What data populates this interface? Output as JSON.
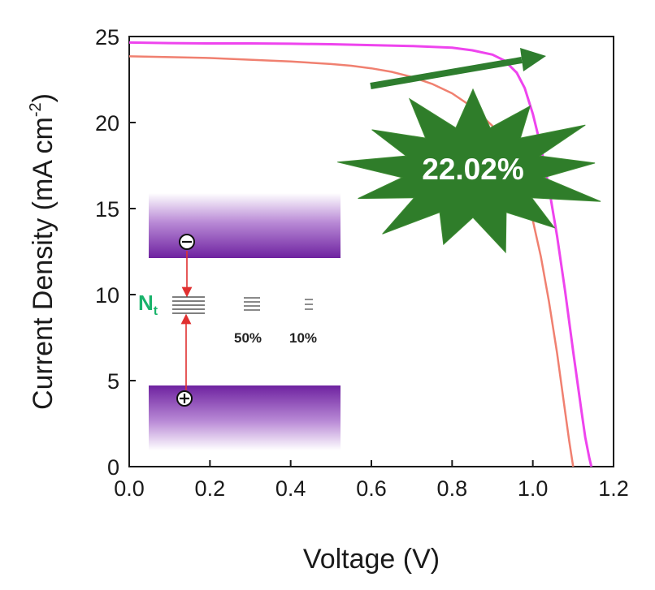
{
  "chart_data": {
    "type": "line",
    "title": "",
    "xlabel": "Voltage (V)",
    "ylabel_main": "Current Density (mA cm",
    "ylabel_sup": "-2",
    "ylabel_close": ")",
    "xlim": [
      0.0,
      1.2
    ],
    "ylim": [
      0,
      25
    ],
    "xticks": [
      "0.0",
      "0.2",
      "0.4",
      "0.6",
      "0.8",
      "1.0",
      "1.2"
    ],
    "yticks": [
      "0",
      "5",
      "10",
      "15",
      "20",
      "25"
    ],
    "grid": false,
    "series": [
      {
        "name": "control",
        "color": "#f08070",
        "x": [
          0.0,
          0.1,
          0.2,
          0.3,
          0.4,
          0.5,
          0.55,
          0.6,
          0.65,
          0.7,
          0.75,
          0.8,
          0.85,
          0.9,
          0.95,
          0.98,
          1.0,
          1.02,
          1.04,
          1.06,
          1.08,
          1.09,
          1.1
        ],
        "y": [
          23.85,
          23.8,
          23.75,
          23.65,
          23.55,
          23.4,
          23.3,
          23.15,
          22.95,
          22.65,
          22.25,
          21.7,
          20.9,
          19.8,
          17.8,
          16.0,
          14.3,
          12.2,
          9.6,
          6.6,
          3.2,
          1.5,
          0
        ]
      },
      {
        "name": "target",
        "color": "#ee44ee",
        "x": [
          0.0,
          0.1,
          0.2,
          0.3,
          0.4,
          0.5,
          0.6,
          0.7,
          0.8,
          0.85,
          0.9,
          0.93,
          0.96,
          0.98,
          1.0,
          1.02,
          1.04,
          1.06,
          1.08,
          1.1,
          1.12,
          1.13,
          1.14,
          1.145
        ],
        "y": [
          24.65,
          24.62,
          24.6,
          24.6,
          24.58,
          24.55,
          24.5,
          24.45,
          24.35,
          24.2,
          23.95,
          23.6,
          22.9,
          22.0,
          20.5,
          18.6,
          16.2,
          13.4,
          10.2,
          6.7,
          3.3,
          1.7,
          0.5,
          0
        ]
      }
    ],
    "annotations": {
      "efficiency": "22.02%",
      "trap_label_main": "N",
      "trap_label_sub": "t",
      "trap_reduction_labels": [
        "50%",
        "10%"
      ]
    }
  },
  "colors": {
    "arrow": "#2e7d2e",
    "starburst": "#2f7d2a",
    "band_purple": "#7a2fa8",
    "trap_label": "#19b36b",
    "transition_arrow": "#e03030"
  }
}
